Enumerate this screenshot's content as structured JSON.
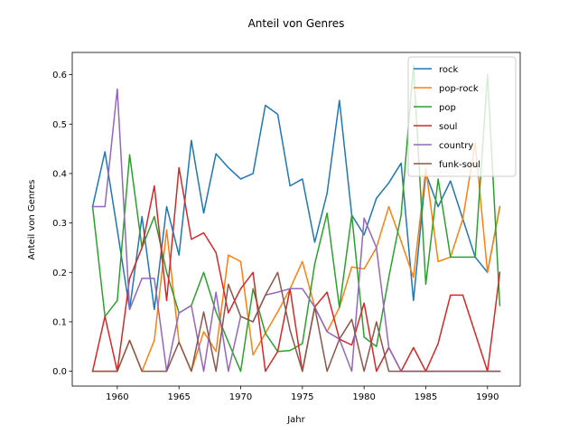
{
  "chart_data": {
    "type": "line",
    "title": "Anteil von Genres",
    "xlabel": "Jahr",
    "ylabel": "Anteil von Genres",
    "xlim": [
      1956.35,
      1992.65
    ],
    "ylim": [
      -0.03,
      0.645
    ],
    "x_ticks": [
      1960,
      1965,
      1970,
      1975,
      1980,
      1985,
      1990
    ],
    "y_ticks": [
      0.0,
      0.1,
      0.2,
      0.3,
      0.4,
      0.5,
      0.6
    ],
    "y_tick_labels": [
      "0.0",
      "0.1",
      "0.2",
      "0.3",
      "0.4",
      "0.5",
      "0.6"
    ],
    "grid": false,
    "legend_position": "top-right",
    "x": [
      1958,
      1959,
      1960,
      1961,
      1962,
      1963,
      1964,
      1965,
      1966,
      1967,
      1968,
      1969,
      1970,
      1971,
      1972,
      1973,
      1974,
      1975,
      1976,
      1977,
      1978,
      1979,
      1980,
      1981,
      1982,
      1983,
      1984,
      1985,
      1986,
      1987,
      1988,
      1989,
      1990,
      1991
    ],
    "series": [
      {
        "name": "rock",
        "color": "#1f77b4",
        "values": [
          0.333,
          0.444,
          0.286,
          0.125,
          0.313,
          0.125,
          0.333,
          0.235,
          0.467,
          0.32,
          0.44,
          0.412,
          0.389,
          0.4,
          0.538,
          0.52,
          0.375,
          0.389,
          0.261,
          0.36,
          0.548,
          0.316,
          0.276,
          0.35,
          0.381,
          0.421,
          0.143,
          0.4,
          0.333,
          0.385,
          0.308,
          0.231,
          0.2,
          0.333
        ]
      },
      {
        "name": "pop-rock",
        "color": "#ff7f0e",
        "values": [
          0.0,
          0.0,
          0.0,
          0.0625,
          0.0,
          0.0625,
          0.286,
          0.059,
          0.0,
          0.08,
          0.04,
          0.235,
          0.222,
          0.033,
          0.077,
          0.12,
          0.167,
          0.222,
          0.13,
          0.08,
          0.129,
          0.211,
          0.207,
          0.25,
          0.333,
          0.263,
          0.19,
          0.41,
          0.222,
          0.231,
          0.308,
          0.462,
          0.2,
          0.333
        ]
      },
      {
        "name": "pop",
        "color": "#2ca02c",
        "values": [
          0.333,
          0.111,
          0.143,
          0.438,
          0.25,
          0.313,
          0.2,
          0.118,
          0.133,
          0.2,
          0.12,
          0.059,
          0.0,
          0.167,
          0.077,
          0.04,
          0.042,
          0.056,
          0.217,
          0.32,
          0.129,
          0.316,
          0.069,
          0.05,
          0.19,
          0.316,
          0.619,
          0.176,
          0.389,
          0.231,
          0.231,
          0.231,
          0.6,
          0.133
        ]
      },
      {
        "name": "soul",
        "color": "#d62728",
        "values": [
          0.0,
          0.111,
          0.0,
          0.188,
          0.25,
          0.375,
          0.143,
          0.412,
          0.267,
          0.28,
          0.24,
          0.118,
          0.167,
          0.2,
          0.0,
          0.04,
          0.167,
          0.0,
          0.13,
          0.16,
          0.065,
          0.053,
          0.138,
          0.0,
          0.048,
          0.0,
          0.048,
          0.0,
          0.056,
          0.154,
          0.154,
          0.077,
          0.0,
          0.2
        ]
      },
      {
        "name": "country",
        "color": "#9467bd",
        "values": [
          0.333,
          0.333,
          0.571,
          0.125,
          0.188,
          0.188,
          0.0,
          0.118,
          0.133,
          0.0,
          0.16,
          0.0,
          0.111,
          0.1,
          0.154,
          0.16,
          0.167,
          0.167,
          0.13,
          0.08,
          0.065,
          0.0,
          0.31,
          0.25,
          0.048,
          0.0,
          0.0,
          0.0,
          0.0,
          0.0,
          0.0,
          0.0,
          0.0,
          0.0
        ]
      },
      {
        "name": "funk-soul",
        "color": "#8c564b",
        "values": [
          0.0,
          0.0,
          0.0,
          0.0625,
          0.0,
          0.0,
          0.0,
          0.059,
          0.0,
          0.12,
          0.0,
          0.176,
          0.111,
          0.1,
          0.154,
          0.2,
          0.083,
          0.0,
          0.13,
          0.0,
          0.065,
          0.105,
          0.0,
          0.1,
          0.0,
          0.0,
          0.0,
          0.0,
          0.0,
          0.0,
          0.0,
          0.0,
          0.0,
          0.0
        ]
      }
    ]
  }
}
